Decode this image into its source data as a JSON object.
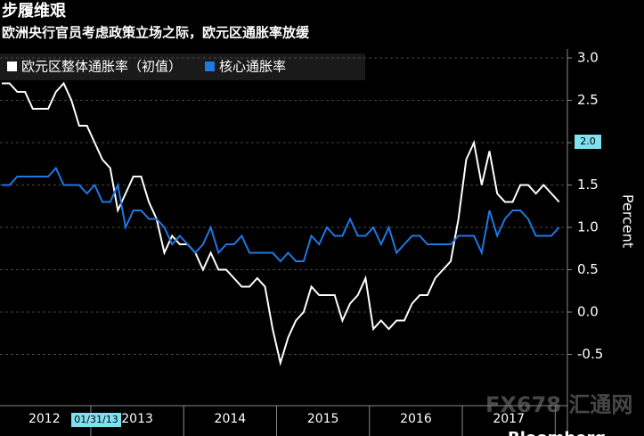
{
  "chart_data": {
    "type": "line",
    "title": "步履维艰",
    "subtitle": "欧洲央行官员考虑政策立场之际，欧元区通胀率放缓",
    "y_label": "Percent",
    "categories": [
      null,
      null,
      null,
      null,
      null,
      null,
      "2012",
      null,
      null,
      null,
      null,
      null,
      null,
      null,
      null,
      null,
      null,
      null,
      "2013",
      null,
      null,
      null,
      null,
      null,
      null,
      null,
      null,
      null,
      null,
      null,
      "2014",
      null,
      null,
      null,
      null,
      null,
      null,
      null,
      null,
      null,
      null,
      null,
      "2015",
      null,
      null,
      null,
      null,
      null,
      null,
      null,
      null,
      null,
      null,
      null,
      "2016",
      null,
      null,
      null,
      null,
      null,
      null,
      null,
      null,
      null,
      null,
      null,
      "2017",
      null,
      null,
      null,
      null,
      null,
      null
    ],
    "series": [
      {
        "name": "欧元区整体通胀率（初值）",
        "color": "#ffffff",
        "values": [
          2.7,
          2.7,
          2.6,
          2.6,
          2.4,
          2.4,
          2.4,
          2.6,
          2.7,
          2.5,
          2.2,
          2.2,
          2.0,
          1.8,
          1.7,
          1.2,
          1.4,
          1.6,
          1.6,
          1.3,
          1.1,
          0.7,
          0.9,
          0.8,
          0.8,
          0.7,
          0.5,
          0.7,
          0.5,
          0.5,
          0.4,
          0.3,
          0.3,
          0.4,
          0.3,
          -0.2,
          -0.6,
          -0.3,
          -0.1,
          0.0,
          0.3,
          0.2,
          0.2,
          0.2,
          -0.1,
          0.1,
          0.2,
          0.4,
          -0.2,
          -0.1,
          -0.2,
          -0.1,
          -0.1,
          0.1,
          0.2,
          0.2,
          0.4,
          0.5,
          0.6,
          1.1,
          1.8,
          2.0,
          1.5,
          1.9,
          1.4,
          1.3,
          1.3,
          1.5,
          1.5,
          1.4,
          1.5,
          1.4,
          1.3
        ]
      },
      {
        "name": "核心通胀率",
        "color": "#1e78e6",
        "values": [
          1.5,
          1.5,
          1.6,
          1.6,
          1.6,
          1.6,
          1.6,
          1.7,
          1.5,
          1.5,
          1.5,
          1.4,
          1.5,
          1.3,
          1.3,
          1.5,
          1.0,
          1.2,
          1.2,
          1.1,
          1.1,
          1.0,
          0.8,
          0.9,
          0.8,
          0.7,
          0.8,
          1.0,
          0.7,
          0.8,
          0.8,
          0.9,
          0.7,
          0.7,
          0.7,
          0.7,
          0.6,
          0.7,
          0.6,
          0.6,
          0.9,
          0.8,
          1.0,
          0.9,
          0.9,
          1.1,
          0.9,
          0.9,
          1.0,
          0.8,
          1.0,
          0.7,
          0.8,
          0.9,
          0.9,
          0.8,
          0.8,
          0.8,
          0.8,
          0.9,
          0.9,
          0.9,
          0.7,
          1.2,
          0.9,
          1.1,
          1.2,
          1.2,
          1.1,
          0.9,
          0.9,
          0.9,
          1.0
        ]
      }
    ],
    "ylim": [
      -1.1,
      3.15
    ],
    "yticks": [
      {
        "value": 3,
        "label": "3.0"
      },
      2.5,
      {
        "value": 2,
        "label": "2.0"
      },
      1.5,
      {
        "value": 1,
        "label": "1.0"
      },
      0.5,
      {
        "value": 0,
        "label": "0.0"
      },
      -0.5
    ],
    "grid": true,
    "annotations": [
      "01/31/13",
      "2.0"
    ],
    "source": "Bloomberg",
    "watermark": "FX678 汇通网"
  }
}
